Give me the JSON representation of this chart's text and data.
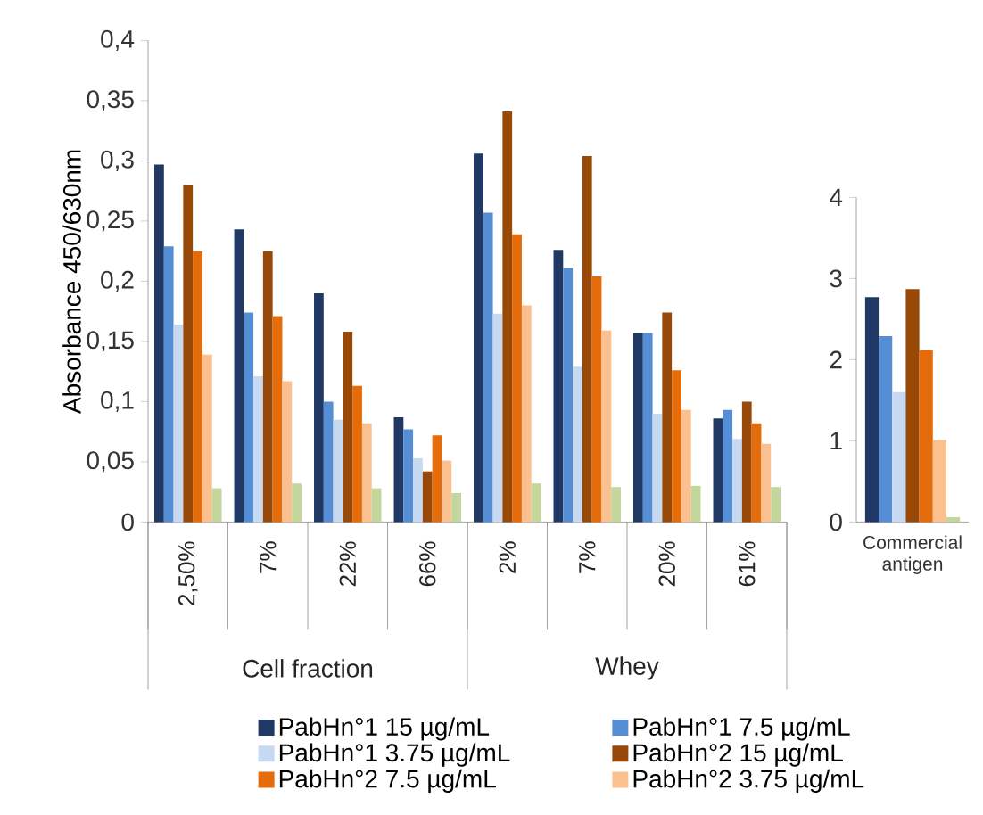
{
  "chart_data": [
    {
      "type": "bar",
      "ylabel": "Absorbance 450/630nm",
      "categories": [
        "2,50%",
        "7%",
        "22%",
        "66%",
        "2%",
        "7%",
        "20%",
        "61%"
      ],
      "series": [
        {
          "name": "PabHn°1 15 µg/mL",
          "color": "#1f3864",
          "values": [
            0.297,
            0.243,
            0.19,
            0.087,
            0.306,
            0.226,
            0.157,
            0.086
          ]
        },
        {
          "name": "PabHn°1 7.5 µg/mL",
          "color": "#558ed5",
          "values": [
            0.229,
            0.174,
            0.1,
            0.077,
            0.257,
            0.211,
            0.157,
            0.093
          ]
        },
        {
          "name": "PabHn°1 3.75 µg/mL",
          "color": "#c6d9f1",
          "values": [
            0.164,
            0.121,
            0.085,
            0.053,
            0.173,
            0.129,
            0.09,
            0.069
          ]
        },
        {
          "name": "PabHn°2 15 µg/mL",
          "color": "#984807",
          "values": [
            0.28,
            0.225,
            0.158,
            0.042,
            0.341,
            0.304,
            0.174,
            0.1
          ]
        },
        {
          "name": "PabHn°2 7.5 µg/mL",
          "color": "#e46c0a",
          "values": [
            0.225,
            0.171,
            0.113,
            0.072,
            0.239,
            0.204,
            0.126,
            0.082
          ]
        },
        {
          "name": "PabHn°2 3.75 µg/mL",
          "color": "#fac090",
          "values": [
            0.139,
            0.117,
            0.082,
            0.051,
            0.18,
            0.159,
            0.093,
            0.065
          ]
        },
        {
          "color": "#c3d69b",
          "values": [
            0.028,
            0.032,
            0.028,
            0.024,
            0.032,
            0.029,
            0.03,
            0.029
          ]
        }
      ],
      "ylim": [
        0,
        0.4
      ],
      "yticks": [
        0,
        {
          "value": 0.05,
          "label": "0,05"
        },
        {
          "value": 0.1,
          "label": "0,1"
        },
        {
          "value": 0.15,
          "label": "0,15"
        },
        {
          "value": 0.2,
          "label": "0,2"
        },
        {
          "value": 0.25,
          "label": "0,25"
        },
        {
          "value": 0.3,
          "label": "0,3"
        },
        {
          "value": 0.35,
          "label": "0,35"
        },
        {
          "value": 0.4,
          "label": "0,4"
        }
      ],
      "annotations": [
        "Cell fraction",
        "Whey"
      ],
      "legend": "bottom"
    },
    {
      "type": "bar",
      "categories": [
        "Commercial antigen"
      ],
      "series": [
        {
          "color": "#1f3864",
          "values": [
            2.77
          ]
        },
        {
          "color": "#558ed5",
          "values": [
            2.29
          ]
        },
        {
          "color": "#c6d9f1",
          "values": [
            1.6
          ]
        },
        {
          "color": "#984807",
          "values": [
            2.87
          ]
        },
        {
          "color": "#e46c0a",
          "values": [
            2.12
          ]
        },
        {
          "color": "#fac090",
          "values": [
            1.01
          ]
        },
        {
          "color": "#c3d69b",
          "values": [
            0.06
          ]
        }
      ],
      "ylim": [
        0,
        4
      ],
      "yticks": [
        0,
        1,
        2,
        3,
        4
      ]
    }
  ]
}
